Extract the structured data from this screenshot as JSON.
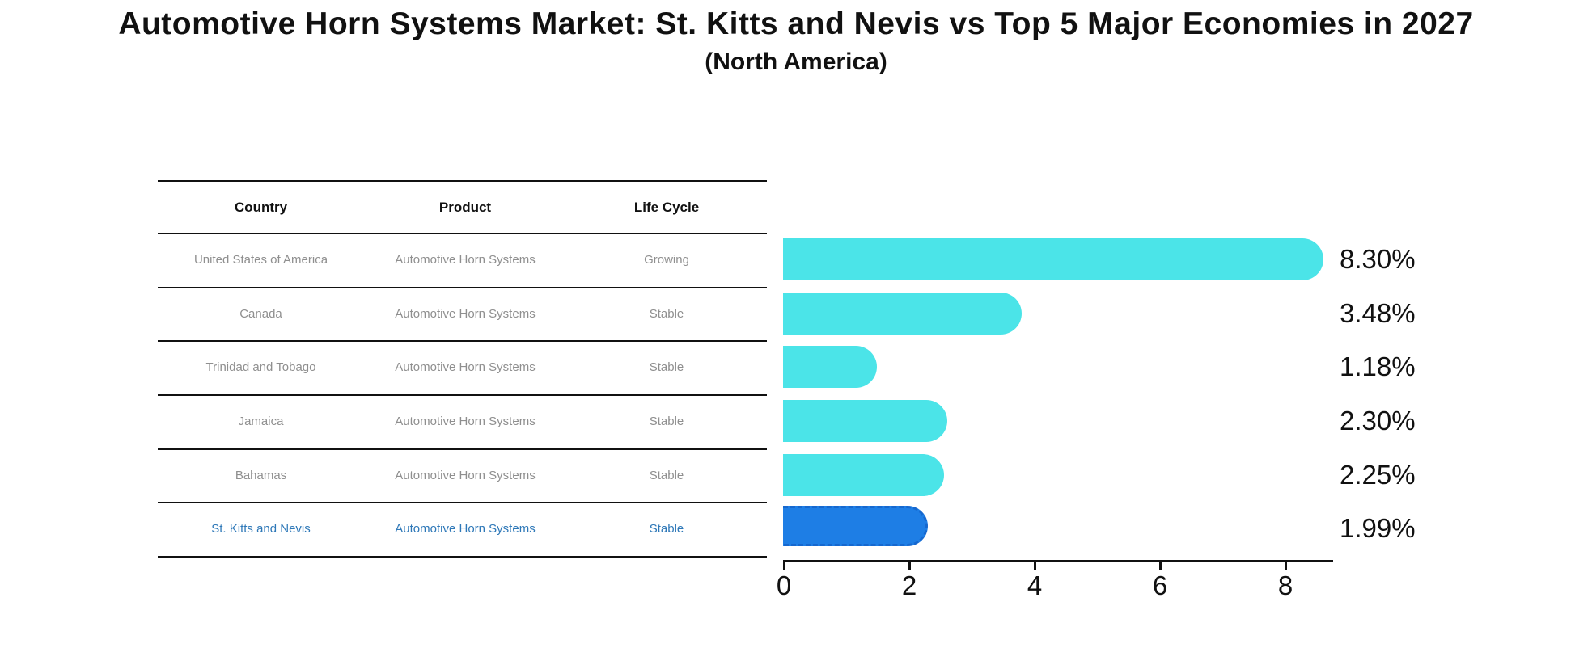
{
  "title": "Automotive Horn Systems Market: St. Kitts and Nevis vs Top 5 Major Economies in 2027",
  "subtitle": "(North America)",
  "colors": {
    "bar": "#4BE4E8",
    "highlight_bar": "#1E7EE5",
    "highlight_border": "#1668CF",
    "highlight_text": "#2E78B8",
    "cell_text": "#8f8f8f",
    "axis": "#111111"
  },
  "table": {
    "columns": [
      "Country",
      "Product",
      "Life Cycle"
    ],
    "rows": [
      {
        "country": "United States of America",
        "product": "Automotive Horn Systems",
        "life_cycle": "Growing"
      },
      {
        "country": "Canada",
        "product": "Automotive Horn Systems",
        "life_cycle": "Stable"
      },
      {
        "country": "Trinidad and Tobago",
        "product": "Automotive Horn Systems",
        "life_cycle": "Stable"
      },
      {
        "country": "Jamaica",
        "product": "Automotive Horn Systems",
        "life_cycle": "Stable"
      },
      {
        "country": "Bahamas",
        "product": "Automotive Horn Systems",
        "life_cycle": "Stable"
      },
      {
        "country": "St. Kitts and Nevis",
        "product": "Automotive Horn Systems",
        "life_cycle": "Stable"
      }
    ]
  },
  "chart_data": {
    "type": "bar",
    "orientation": "horizontal",
    "title": "Automotive Horn Systems Market: St. Kitts and Nevis vs Top 5 Major Economies in 2027",
    "subtitle": "(North America)",
    "categories": [
      "United States of America",
      "Canada",
      "Trinidad and Tobago",
      "Jamaica",
      "Bahamas",
      "St. Kitts and Nevis"
    ],
    "values": [
      8.3,
      3.48,
      1.18,
      2.3,
      2.25,
      1.99
    ],
    "value_labels": [
      "8.30%",
      "3.48%",
      "1.18%",
      "2.30%",
      "2.25%",
      "1.99%"
    ],
    "unit": "percent",
    "highlight_category": "St. Kitts and Nevis",
    "highlight_index": 5,
    "x_ticks": [
      0,
      2,
      4,
      6,
      8
    ],
    "xlim": [
      0,
      8.77
    ],
    "grid": false,
    "legend": false
  }
}
